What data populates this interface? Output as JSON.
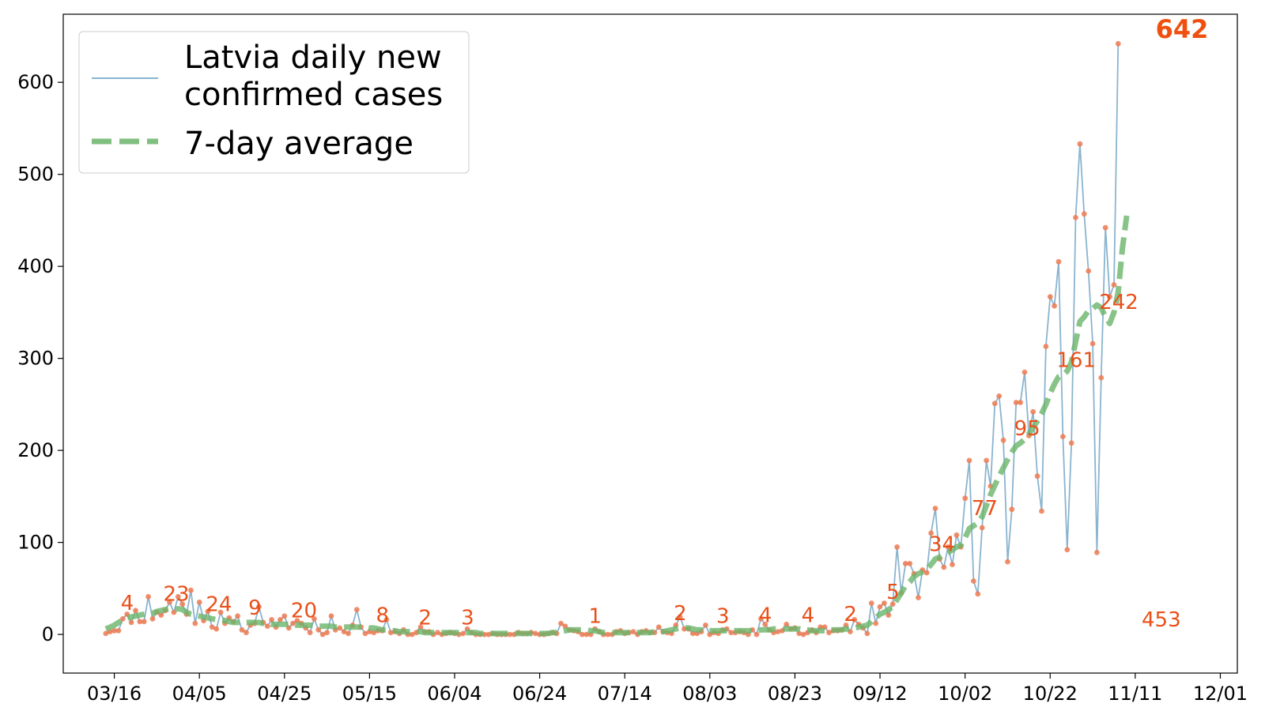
{
  "chart_data": {
    "type": "line",
    "title": "",
    "xlabel": "",
    "ylabel": "",
    "ylim": [
      -42,
      674
    ],
    "yticks": [
      0,
      100,
      200,
      300,
      400,
      500,
      600
    ],
    "xticks": [
      "03/16",
      "04/05",
      "04/25",
      "05/15",
      "06/04",
      "06/24",
      "07/14",
      "08/03",
      "08/23",
      "09/12",
      "10/02",
      "10/22",
      "11/11",
      "12/01"
    ],
    "xlim": [
      "03/04",
      "12/05"
    ],
    "legend": {
      "position": "top-left",
      "entries": [
        "Latvia daily new\nconfirmed cases",
        "7-day average"
      ]
    },
    "grid": false,
    "colors": {
      "daily_line": "#8ab4cf",
      "points": "#ee7b52",
      "average": "#6ab46a",
      "annotation": "#e8501a"
    },
    "series": [
      {
        "name": "Latvia daily new\nconfirmed cases",
        "start_date": "03/14",
        "values": [
          1,
          3,
          4,
          4,
          17,
          22,
          13,
          26,
          14,
          14,
          41,
          17,
          24,
          21,
          26,
          35,
          24,
          41,
          33,
          22,
          48,
          12,
          35,
          15,
          25,
          8,
          6,
          24,
          12,
          18,
          14,
          20,
          5,
          2,
          10,
          12,
          30,
          13,
          9,
          16,
          8,
          16,
          20,
          7,
          12,
          15,
          12,
          7,
          2,
          17,
          5,
          0,
          2,
          20,
          5,
          7,
          3,
          1,
          10,
          27,
          8,
          1,
          3,
          2,
          4,
          4,
          16,
          2,
          3,
          1,
          5,
          0,
          0,
          2,
          8,
          3,
          3,
          0,
          2,
          0,
          1,
          2,
          1,
          0,
          1,
          6,
          2,
          0,
          0,
          0,
          0,
          1,
          0,
          0,
          0,
          0,
          0,
          2,
          1,
          1,
          2,
          1,
          0,
          0,
          1,
          2,
          1,
          12,
          9,
          5,
          4,
          3,
          0,
          0,
          0,
          6,
          3,
          0,
          0,
          0,
          3,
          4,
          1,
          2,
          3,
          0,
          3,
          4,
          2,
          2,
          8,
          3,
          2,
          1,
          10,
          19,
          6,
          6,
          1,
          1,
          3,
          10,
          0,
          2,
          1,
          5,
          6,
          2,
          2,
          3,
          2,
          0,
          5,
          0,
          17,
          11,
          5,
          2,
          3,
          4,
          11,
          6,
          7,
          1,
          0,
          2,
          5,
          2,
          8,
          8,
          2,
          4,
          4,
          5,
          10,
          3,
          16,
          11,
          7,
          1,
          34,
          12,
          30,
          34,
          21,
          33,
          95,
          45,
          77,
          77,
          66,
          40,
          70,
          67,
          110,
          137,
          82,
          73,
          95,
          76,
          108,
          95,
          148,
          189,
          58,
          44,
          116,
          189,
          161,
          251,
          259,
          211,
          79,
          136,
          252,
          252,
          285,
          216,
          242,
          172,
          134,
          313,
          367,
          357,
          405,
          215,
          92,
          208,
          453,
          533,
          457,
          395,
          316,
          89,
          279,
          442,
          367,
          380,
          642
        ]
      },
      {
        "name": "7-day average",
        "start_date": "03/14",
        "values": [
          6,
          8,
          10,
          13,
          16,
          18,
          19,
          20,
          21,
          22,
          23,
          23,
          25,
          26,
          27,
          28,
          27,
          28,
          27,
          24,
          22,
          21,
          20,
          19,
          18,
          17,
          16,
          16,
          15,
          14,
          13,
          13,
          13,
          13,
          13,
          13,
          13,
          12,
          12,
          11,
          11,
          11,
          11,
          11,
          11,
          10,
          10,
          10,
          10,
          10,
          9,
          9,
          9,
          9,
          8,
          8,
          8,
          8,
          8,
          8,
          8,
          8,
          7,
          7,
          6,
          5,
          5,
          4,
          4,
          3,
          3,
          3,
          3,
          3,
          3,
          2,
          2,
          2,
          2,
          2,
          2,
          2,
          2,
          2,
          2,
          2,
          2,
          2,
          1,
          1,
          1,
          1,
          1,
          1,
          1,
          1,
          1,
          1,
          1,
          1,
          1,
          1,
          1,
          1,
          1,
          2,
          2,
          3,
          4,
          5,
          5,
          5,
          5,
          5,
          4,
          4,
          3,
          2,
          2,
          2,
          2,
          2,
          2,
          2,
          2,
          2,
          2,
          2,
          2,
          3,
          3,
          3,
          4,
          5,
          6,
          7,
          7,
          7,
          6,
          5,
          5,
          4,
          4,
          4,
          4,
          4,
          4,
          4,
          4,
          4,
          4,
          4,
          4,
          4,
          5,
          5,
          5,
          6,
          6,
          6,
          6,
          6,
          6,
          6,
          5,
          5,
          4,
          4,
          4,
          4,
          4,
          5,
          5,
          5,
          6,
          6,
          7,
          8,
          9,
          10,
          14,
          18,
          22,
          24,
          27,
          30,
          38,
          45,
          53,
          57,
          63,
          66,
          68,
          71,
          76,
          82,
          84,
          87,
          89,
          92,
          95,
          97,
          105,
          115,
          118,
          121,
          128,
          140,
          152,
          162,
          172,
          181,
          190,
          198,
          205,
          208,
          212,
          218,
          225,
          232,
          240,
          250,
          262,
          272,
          280,
          282,
          286,
          296,
          318,
          340,
          345,
          352,
          354,
          358,
          355,
          345,
          338,
          350,
          372,
          420,
          455
        ]
      }
    ],
    "annotations": [
      {
        "date": "03/19",
        "text": "4"
      },
      {
        "date": "03/29",
        "text": "23"
      },
      {
        "date": "04/08",
        "text": "24"
      },
      {
        "date": "04/18",
        "text": "9"
      },
      {
        "date": "04/28",
        "text": "20"
      },
      {
        "date": "05/18",
        "text": "8"
      },
      {
        "date": "05/28",
        "text": "2"
      },
      {
        "date": "06/07",
        "text": "3"
      },
      {
        "date": "07/07",
        "text": "1"
      },
      {
        "date": "07/27",
        "text": "2"
      },
      {
        "date": "08/06",
        "text": "3"
      },
      {
        "date": "08/16",
        "text": "4"
      },
      {
        "date": "08/26",
        "text": "4"
      },
      {
        "date": "09/05",
        "text": "2"
      },
      {
        "date": "09/15",
        "text": "5"
      },
      {
        "date": "09/25",
        "text": "34"
      },
      {
        "date": "10/05",
        "text": "77"
      },
      {
        "date": "10/15",
        "text": "95"
      },
      {
        "date": "10/25",
        "text": "161"
      },
      {
        "date": "11/04",
        "text": "242"
      },
      {
        "date": "11/14",
        "text": "453"
      },
      {
        "date": "11/20",
        "text": "642",
        "highlight": true
      }
    ]
  }
}
